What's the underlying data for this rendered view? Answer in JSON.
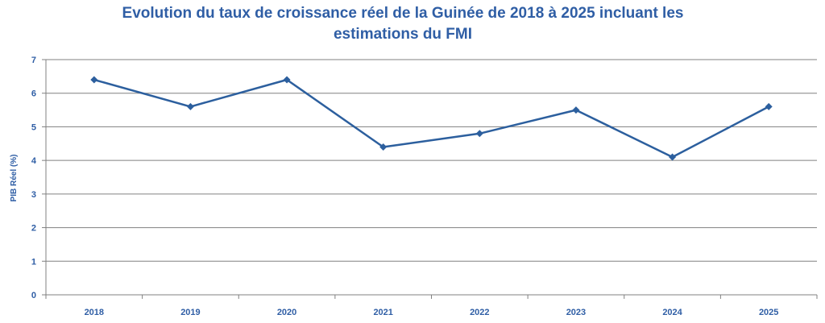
{
  "chart_data": {
    "type": "line",
    "title_line1": "Evolution du taux de croissance réel  de la Guinée de 2018 à 2025 incluant les",
    "title_line2": "estimations du FMI",
    "xlabel": "",
    "ylabel": "PIB Réel (%)",
    "x": [
      "2018",
      "2019",
      "2020",
      "2021",
      "2022",
      "2023",
      "2024",
      "2025"
    ],
    "series": [
      {
        "values": [
          6.4,
          5.6,
          6.4,
          4.4,
          4.8,
          5.5,
          4.1,
          5.6
        ]
      }
    ],
    "ylim": [
      0,
      7
    ],
    "yticks": [
      "0",
      "1",
      "2",
      "3",
      "4",
      "5",
      "6",
      "7"
    ],
    "grid": true,
    "legend": "none",
    "colors": {
      "line": "#2c5f9e",
      "text": "#2f5ea5",
      "grid": "#808080"
    }
  }
}
